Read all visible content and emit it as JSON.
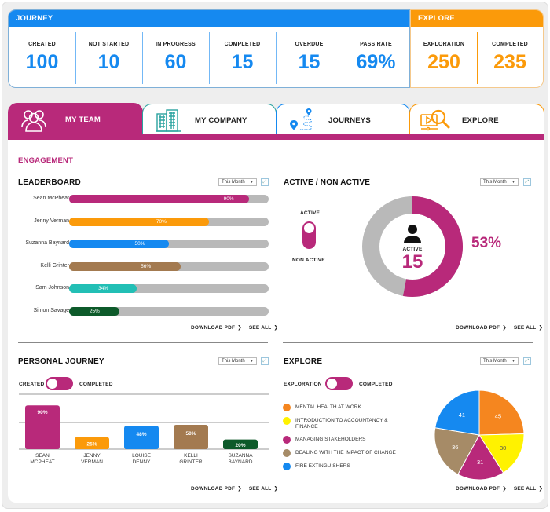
{
  "journey": {
    "title": "JOURNEY",
    "stats": [
      {
        "label": "CREATED",
        "value": "100"
      },
      {
        "label": "NOT STARTED",
        "value": "10"
      },
      {
        "label": "IN PROGRESS",
        "value": "60"
      },
      {
        "label": "COMPLETED",
        "value": "15"
      },
      {
        "label": "OVERDUE",
        "value": "15"
      },
      {
        "label": "PASS RATE",
        "value": "69%"
      }
    ]
  },
  "explore_stats": {
    "title": "EXPLORE",
    "stats": [
      {
        "label": "EXPLORATION",
        "value": "250"
      },
      {
        "label": "COMPLETED",
        "value": "235"
      }
    ]
  },
  "tabs": [
    {
      "label": "MY TEAM",
      "icon": "team-icon",
      "active": true
    },
    {
      "label": "MY COMPANY",
      "icon": "building-icon",
      "active": false
    },
    {
      "label": "JOURNEYS",
      "icon": "route-pin-icon",
      "active": false
    },
    {
      "label": "EXPLORE",
      "icon": "video-search-icon",
      "active": false
    }
  ],
  "section_title": "ENGAGEMENT",
  "common": {
    "period": "This Month",
    "download": "DOWNLOAD PDF",
    "see_all": "SEE ALL",
    "chevron": "❯",
    "expand": "⤢",
    "caret": "▼"
  },
  "colors": {
    "magenta": "#b8297a",
    "orange": "#fb9a0a",
    "blue": "#1589f0",
    "brown": "#a37a50",
    "teal": "#22bfb5",
    "dark_green": "#0d5a2a",
    "grey": "#b9b9b9"
  },
  "leaderboard": {
    "title": "LEADERBOARD",
    "rows": [
      {
        "name": "Sean McPheat",
        "value": 90,
        "label": "90%",
        "color": "#b8297a"
      },
      {
        "name": "Jenny Verman",
        "value": 70,
        "label": "70%",
        "color": "#fb9a0a"
      },
      {
        "name": "Suzanna Baynard",
        "value": 50,
        "label": "50%",
        "color": "#1589f0"
      },
      {
        "name": "Kelli Grinter",
        "value": 56,
        "label": "56%",
        "color": "#a37a50"
      },
      {
        "name": "Sam Johnson",
        "value": 34,
        "label": "34%",
        "color": "#22bfb5"
      },
      {
        "name": "Simon Savage",
        "value": 25,
        "label": "25%",
        "color": "#0d5a2a"
      }
    ]
  },
  "active": {
    "title": "ACTIVE / NON ACTIVE",
    "toggle_top": "ACTIVE",
    "toggle_bottom": "NON ACTIVE",
    "center_label": "ACTIVE",
    "center_value": "15",
    "percent_label": "53%",
    "percent": 53
  },
  "personal": {
    "title": "PERSONAL JOURNEY",
    "toggle_left": "CREATED",
    "toggle_right": "COMPLETED"
  },
  "explore_panel": {
    "title": "EXPLORE",
    "toggle_left": "EXPLORATION",
    "toggle_right": "COMPLETED"
  },
  "chart_data": [
    {
      "type": "bar",
      "title": "PERSONAL JOURNEY",
      "categories": [
        "SEAN MCPHEAT",
        "JENNY VERMAN",
        "LOUISE DENNY",
        "KELLI GRINTER",
        "SUZANNA BAYNARD"
      ],
      "category_lines": [
        [
          "SEAN",
          "MCPHEAT"
        ],
        [
          "JENNY",
          "VERMAN"
        ],
        [
          "LOUISE",
          "DENNY"
        ],
        [
          "KELLI",
          "GRINTER"
        ],
        [
          "SUZANNA",
          "BAYNARD"
        ]
      ],
      "values": [
        90,
        25,
        48,
        50,
        20
      ],
      "labels": [
        "90%",
        "25%",
        "48%",
        "50%",
        "20%"
      ],
      "colors": [
        "#b8297a",
        "#fb9a0a",
        "#1589f0",
        "#a37a50",
        "#0d5a2a"
      ],
      "ylim": [
        0,
        100
      ],
      "grid": true
    },
    {
      "type": "pie",
      "title": "EXPLORE",
      "slices": [
        {
          "label": "MENTAL HEALTH AT WORK",
          "value": 45,
          "color": "#f5861f"
        },
        {
          "label": "INTRODUCTION TO ACCOUNTANCY & FINANCE",
          "value": 30,
          "color": "#fff200"
        },
        {
          "label": "MANAGING STAKEHOLDERS",
          "value": 31,
          "color": "#b8297a"
        },
        {
          "label": "DEALING WITH THE IMPACT OF CHANGE",
          "value": 36,
          "color": "#a68b67"
        },
        {
          "label": "FIRE EXTINGUISHERS",
          "value": 41,
          "color": "#1589f0"
        }
      ],
      "legend": "left"
    }
  ]
}
